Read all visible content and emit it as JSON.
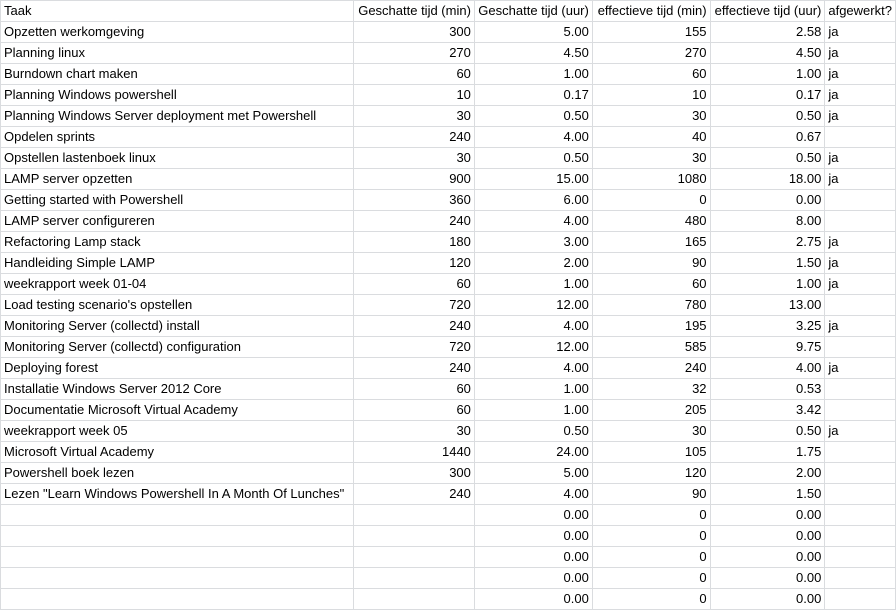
{
  "columns": [
    "Taak",
    "Geschatte tijd (min)",
    "Geschatte tijd (uur)",
    "effectieve tijd (min)",
    "effectieve tijd (uur)",
    "afgewerkt?"
  ],
  "rows": [
    [
      "Opzetten werkomgeving",
      "300",
      "5.00",
      "155",
      "2.58",
      "ja"
    ],
    [
      "Planning linux",
      "270",
      "4.50",
      "270",
      "4.50",
      "ja"
    ],
    [
      "Burndown chart maken",
      "60",
      "1.00",
      "60",
      "1.00",
      "ja"
    ],
    [
      "Planning Windows powershell",
      "10",
      "0.17",
      "10",
      "0.17",
      "ja"
    ],
    [
      "Planning Windows Server deployment met Powershell",
      "30",
      "0.50",
      "30",
      "0.50",
      "ja"
    ],
    [
      "Opdelen sprints",
      "240",
      "4.00",
      "40",
      "0.67",
      ""
    ],
    [
      "Opstellen lastenboek linux",
      "30",
      "0.50",
      "30",
      "0.50",
      "ja"
    ],
    [
      "LAMP server opzetten",
      "900",
      "15.00",
      "1080",
      "18.00",
      "ja"
    ],
    [
      "Getting started with Powershell",
      "360",
      "6.00",
      "0",
      "0.00",
      ""
    ],
    [
      "LAMP server configureren",
      "240",
      "4.00",
      "480",
      "8.00",
      ""
    ],
    [
      "Refactoring Lamp stack",
      "180",
      "3.00",
      "165",
      "2.75",
      "ja"
    ],
    [
      "Handleiding Simple LAMP",
      "120",
      "2.00",
      "90",
      "1.50",
      "ja"
    ],
    [
      "weekrapport week 01-04",
      "60",
      "1.00",
      "60",
      "1.00",
      "ja"
    ],
    [
      "Load testing scenario's opstellen",
      "720",
      "12.00",
      "780",
      "13.00",
      ""
    ],
    [
      "Monitoring Server (collectd) install",
      "240",
      "4.00",
      "195",
      "3.25",
      "ja"
    ],
    [
      "Monitoring Server (collectd) configuration",
      "720",
      "12.00",
      "585",
      "9.75",
      ""
    ],
    [
      "Deploying forest",
      "240",
      "4.00",
      "240",
      "4.00",
      "ja"
    ],
    [
      "Installatie Windows Server 2012 Core",
      "60",
      "1.00",
      "32",
      "0.53",
      ""
    ],
    [
      "Documentatie Microsoft Virtual Academy",
      "60",
      "1.00",
      "205",
      "3.42",
      ""
    ],
    [
      "weekrapport week 05",
      "30",
      "0.50",
      "30",
      "0.50",
      "ja"
    ],
    [
      "Microsoft Virtual Academy",
      "1440",
      "24.00",
      "105",
      "1.75",
      ""
    ],
    [
      "Powershell boek lezen",
      "300",
      "5.00",
      "120",
      "2.00",
      ""
    ],
    [
      "Lezen \"Learn Windows Powershell In A Month Of Lunches\"",
      "240",
      "4.00",
      "90",
      "1.50",
      ""
    ],
    [
      "",
      "",
      "0.00",
      "0",
      "0.00",
      ""
    ],
    [
      "",
      "",
      "0.00",
      "0",
      "0.00",
      ""
    ],
    [
      "",
      "",
      "0.00",
      "0",
      "0.00",
      ""
    ],
    [
      "",
      "",
      "0.00",
      "0",
      "0.00",
      ""
    ],
    [
      "",
      "",
      "0.00",
      "0",
      "0.00",
      ""
    ]
  ]
}
